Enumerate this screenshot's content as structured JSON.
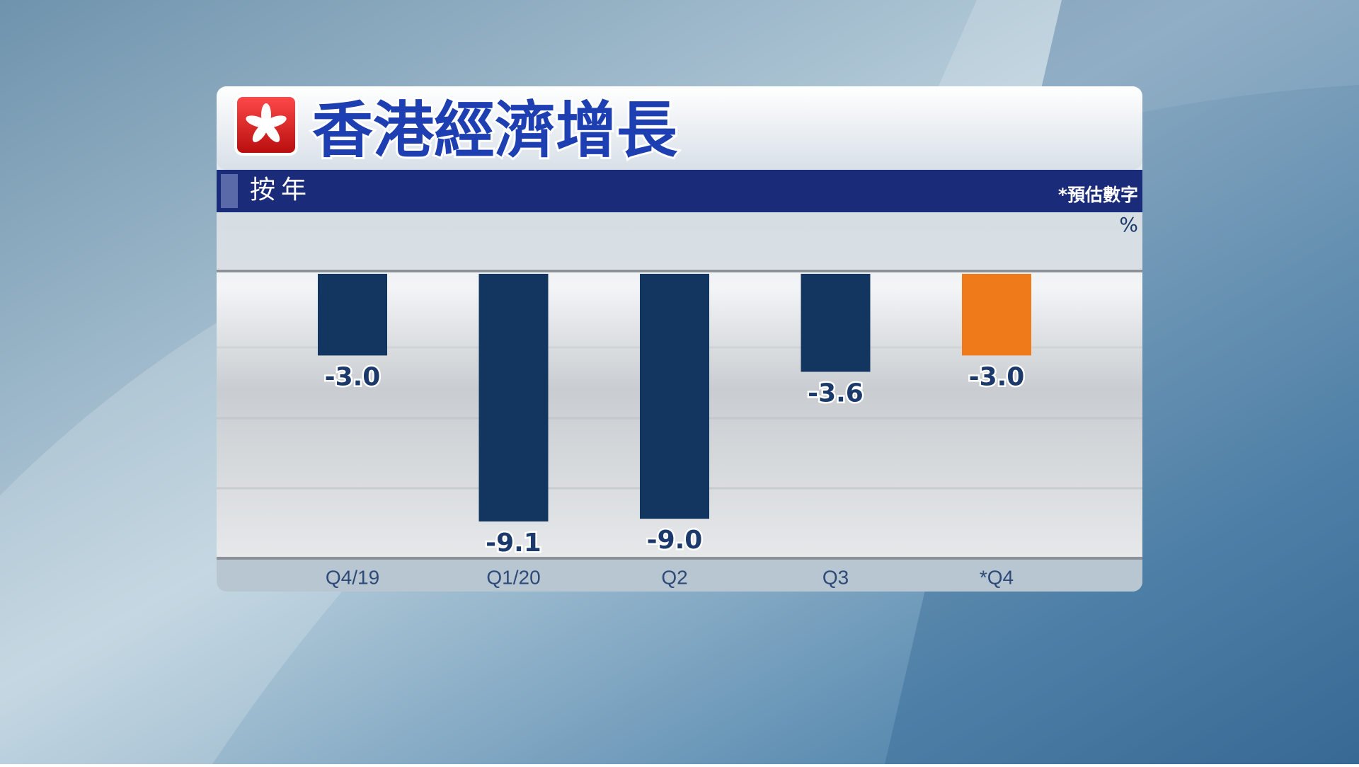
{
  "chart_data": {
    "type": "bar",
    "title": "香港經濟增長",
    "subtitle": "按年",
    "note": "*預估數字",
    "unit": "%",
    "categories": [
      "Q4/19",
      "Q1/20",
      "Q2",
      "Q3",
      "*Q4"
    ],
    "values": [
      -3.0,
      -9.1,
      -9.0,
      -3.6,
      -3.0
    ],
    "value_labels": [
      "-3.0",
      "-9.1",
      "-9.0",
      "-3.6",
      "-3.0"
    ],
    "colors": [
      "#12365f",
      "#12365f",
      "#12365f",
      "#12365f",
      "#ee7a1a"
    ],
    "ylim": [
      -10.4,
      0
    ]
  }
}
